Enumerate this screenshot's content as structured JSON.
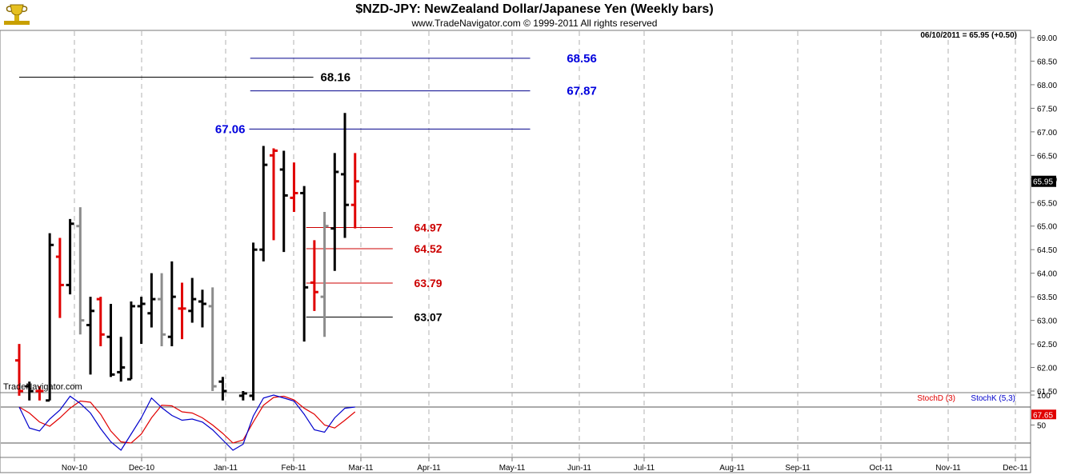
{
  "header": {
    "title": "$NZD-JPY:  NewZealand Dollar/Japanese Yen  (Weekly bars)",
    "copyright": "www.TradeNavigator.com © 1999-2011 All rights reserved",
    "watermark": "TradeNavigator.com",
    "logo_icon": "trophy-logo-icon"
  },
  "chart_data": [
    {
      "type": "ohlc",
      "name": "price",
      "status": "06/10/2011 = 65.95 (+0.50)",
      "last_value": "65.95",
      "ylim": [
        61.5,
        69.0
      ],
      "y_ticks": [
        "61.50",
        "62.00",
        "62.50",
        "63.00",
        "63.50",
        "64.00",
        "64.50",
        "65.00",
        "65.50",
        "66.00",
        "66.50",
        "67.00",
        "67.50",
        "68.00",
        "68.50",
        "69.00"
      ],
      "x_ticks": [
        "Nov-10",
        "Dec-10",
        "Jan-11",
        "Feb-11",
        "Mar-11",
        "Apr-11",
        "May-11",
        "Jun-11",
        "Jul-11",
        "Aug-11",
        "Sep-11",
        "Oct-11",
        "Nov-11",
        "Dec-11"
      ],
      "colors": {
        "up": "#000000",
        "down": "#e00000",
        "neutral": "#8c8c8c"
      },
      "bars": [
        {
          "w": 0,
          "o": 62.15,
          "h": 62.5,
          "l": 61.4,
          "c": 61.5,
          "d": "down"
        },
        {
          "w": 1,
          "o": 61.6,
          "h": 61.7,
          "l": 61.3,
          "c": 61.5,
          "d": "up"
        },
        {
          "w": 2,
          "o": 61.5,
          "h": 61.6,
          "l": 61.3,
          "c": 61.5,
          "d": "down"
        },
        {
          "w": 3,
          "o": 61.3,
          "h": 64.85,
          "l": 61.3,
          "c": 64.6,
          "d": "up"
        },
        {
          "w": 4,
          "o": 64.35,
          "h": 64.75,
          "l": 63.05,
          "c": 63.75,
          "d": "down"
        },
        {
          "w": 5,
          "o": 63.75,
          "h": 65.15,
          "l": 63.55,
          "c": 65.05,
          "d": "up"
        },
        {
          "w": 6,
          "o": 65.0,
          "h": 65.4,
          "l": 62.7,
          "c": 63.0,
          "d": "neutral"
        },
        {
          "w": 7,
          "o": 62.9,
          "h": 63.5,
          "l": 61.85,
          "c": 63.2,
          "d": "up"
        },
        {
          "w": 8,
          "o": 63.45,
          "h": 63.5,
          "l": 62.45,
          "c": 62.7,
          "d": "down"
        },
        {
          "w": 9,
          "o": 62.65,
          "h": 63.35,
          "l": 61.8,
          "c": 61.85,
          "d": "up"
        },
        {
          "w": 10,
          "o": 61.9,
          "h": 62.65,
          "l": 61.7,
          "c": 62.0,
          "d": "up"
        },
        {
          "w": 11,
          "o": 61.75,
          "h": 63.4,
          "l": 61.75,
          "c": 63.3,
          "d": "up"
        },
        {
          "w": 12,
          "o": 63.3,
          "h": 63.5,
          "l": 62.5,
          "c": 63.35,
          "d": "up"
        },
        {
          "w": 13,
          "o": 63.15,
          "h": 64.0,
          "l": 62.85,
          "c": 63.45,
          "d": "up"
        },
        {
          "w": 14,
          "o": 63.45,
          "h": 64.0,
          "l": 62.45,
          "c": 62.7,
          "d": "neutral"
        },
        {
          "w": 15,
          "o": 62.65,
          "h": 64.25,
          "l": 62.45,
          "c": 63.5,
          "d": "up"
        },
        {
          "w": 16,
          "o": 63.25,
          "h": 63.8,
          "l": 62.6,
          "c": 63.25,
          "d": "down"
        },
        {
          "w": 17,
          "o": 63.2,
          "h": 63.9,
          "l": 62.95,
          "c": 63.45,
          "d": "up"
        },
        {
          "w": 18,
          "o": 63.4,
          "h": 63.65,
          "l": 62.85,
          "c": 63.35,
          "d": "up"
        },
        {
          "w": 19,
          "o": 63.3,
          "h": 63.7,
          "l": 61.5,
          "c": 61.6,
          "d": "neutral"
        },
        {
          "w": 20,
          "o": 61.7,
          "h": 61.8,
          "l": 61.3,
          "c": 61.5,
          "d": "up"
        },
        {
          "w": 22,
          "o": 61.4,
          "h": 61.5,
          "l": 61.3,
          "c": 61.45,
          "d": "up"
        },
        {
          "w": 23,
          "o": 61.4,
          "h": 64.65,
          "l": 61.3,
          "c": 64.5,
          "d": "up"
        },
        {
          "w": 24,
          "o": 64.5,
          "h": 66.7,
          "l": 64.25,
          "c": 66.3,
          "d": "up"
        },
        {
          "w": 25,
          "o": 66.5,
          "h": 66.65,
          "l": 64.7,
          "c": 66.6,
          "d": "down"
        },
        {
          "w": 26,
          "o": 66.2,
          "h": 66.6,
          "l": 64.45,
          "c": 65.65,
          "d": "up"
        },
        {
          "w": 27,
          "o": 65.6,
          "h": 66.35,
          "l": 65.3,
          "c": 65.7,
          "d": "down"
        },
        {
          "w": 28,
          "o": 65.7,
          "h": 65.85,
          "l": 62.55,
          "c": 63.7,
          "d": "up"
        },
        {
          "w": 29,
          "o": 63.8,
          "h": 64.7,
          "l": 63.2,
          "c": 63.6,
          "d": "down"
        },
        {
          "w": 30,
          "o": 63.5,
          "h": 65.3,
          "l": 62.65,
          "c": 65.0,
          "d": "neutral"
        },
        {
          "w": 31,
          "o": 64.95,
          "h": 66.55,
          "l": 64.05,
          "c": 66.15,
          "d": "up"
        },
        {
          "w": 32,
          "o": 66.1,
          "h": 67.4,
          "l": 64.75,
          "c": 65.45,
          "d": "up"
        },
        {
          "w": 33,
          "o": 65.45,
          "h": 66.55,
          "l": 64.95,
          "c": 65.95,
          "d": "down"
        }
      ],
      "levels": [
        {
          "label": "68.56",
          "value": 68.56,
          "color": "#00008b",
          "label_color": "#0000dd",
          "w_start": 22.7,
          "w_end": 50.2,
          "label_w": 53.8
        },
        {
          "label": "68.16",
          "value": 68.16,
          "color": "#000000",
          "label_color": "#000000",
          "w_start": 0.0,
          "w_end": 28.9,
          "label_w": 29.6
        },
        {
          "label": "67.87",
          "value": 67.87,
          "color": "#00008b",
          "label_color": "#0000dd",
          "w_start": 22.7,
          "w_end": 50.2,
          "label_w": 53.8
        },
        {
          "label": "67.06",
          "value": 67.06,
          "color": "#00008b",
          "label_color": "#0000dd",
          "w_start": 22.6,
          "w_end": 50.2,
          "label_w": 20.6,
          "label_side": "left"
        },
        {
          "label": "64.97",
          "value": 64.97,
          "color": "#cc0000",
          "label_color": "#cc0000",
          "w_start": 28.2,
          "w_end": 36.7,
          "label_w": 38.8
        },
        {
          "label": "64.52",
          "value": 64.52,
          "color": "#cc0000",
          "label_color": "#cc0000",
          "w_start": 28.2,
          "w_end": 36.7,
          "label_w": 38.8
        },
        {
          "label": "63.79",
          "value": 63.79,
          "color": "#cc0000",
          "label_color": "#cc0000",
          "w_start": 28.2,
          "w_end": 36.7,
          "label_w": 38.8
        },
        {
          "label": "63.07",
          "value": 63.07,
          "color": "#000000",
          "label_color": "#000000",
          "w_start": 28.2,
          "w_end": 36.7,
          "label_w": 38.8
        }
      ]
    },
    {
      "type": "line",
      "name": "stochastic",
      "ylim": [
        0,
        100
      ],
      "y_ticks": [
        "50",
        "100"
      ],
      "ref_lines": [
        80,
        20
      ],
      "last_value": "67.65",
      "series": [
        {
          "name": "StochD (3)",
          "color": "#e00000",
          "values": [
            [
              0,
              80
            ],
            [
              1,
              70
            ],
            [
              2,
              55
            ],
            [
              3,
              48
            ],
            [
              4,
              62
            ],
            [
              5,
              78
            ],
            [
              6,
              90
            ],
            [
              7,
              88
            ],
            [
              8,
              68
            ],
            [
              9,
              40
            ],
            [
              10,
              22
            ],
            [
              11,
              20
            ],
            [
              12,
              35
            ],
            [
              13,
              62
            ],
            [
              14,
              83
            ],
            [
              15,
              82
            ],
            [
              16,
              72
            ],
            [
              17,
              70
            ],
            [
              18,
              62
            ],
            [
              19,
              50
            ],
            [
              20,
              36
            ],
            [
              21,
              20
            ],
            [
              22,
              25
            ],
            [
              23,
              55
            ],
            [
              24,
              83
            ],
            [
              25,
              96
            ],
            [
              26,
              98
            ],
            [
              27,
              92
            ],
            [
              28,
              78
            ],
            [
              29,
              68
            ],
            [
              30,
              50
            ],
            [
              31,
              45
            ],
            [
              32,
              58
            ],
            [
              33,
              72
            ]
          ]
        },
        {
          "name": "StochK (5,3)",
          "color": "#0000cc",
          "values": [
            [
              0,
              80
            ],
            [
              1,
              45
            ],
            [
              2,
              40
            ],
            [
              3,
              60
            ],
            [
              4,
              75
            ],
            [
              5,
              98
            ],
            [
              6,
              86
            ],
            [
              7,
              70
            ],
            [
              8,
              44
            ],
            [
              9,
              22
            ],
            [
              10,
              8
            ],
            [
              11,
              35
            ],
            [
              12,
              62
            ],
            [
              13,
              95
            ],
            [
              14,
              79
            ],
            [
              15,
              66
            ],
            [
              16,
              58
            ],
            [
              17,
              60
            ],
            [
              18,
              55
            ],
            [
              19,
              42
            ],
            [
              20,
              25
            ],
            [
              21,
              8
            ],
            [
              22,
              18
            ],
            [
              23,
              65
            ],
            [
              24,
              95
            ],
            [
              25,
              100
            ],
            [
              26,
              95
            ],
            [
              27,
              90
            ],
            [
              28,
              68
            ],
            [
              29,
              42
            ],
            [
              30,
              38
            ],
            [
              31,
              62
            ],
            [
              32,
              78
            ],
            [
              33,
              80
            ]
          ]
        }
      ]
    }
  ]
}
